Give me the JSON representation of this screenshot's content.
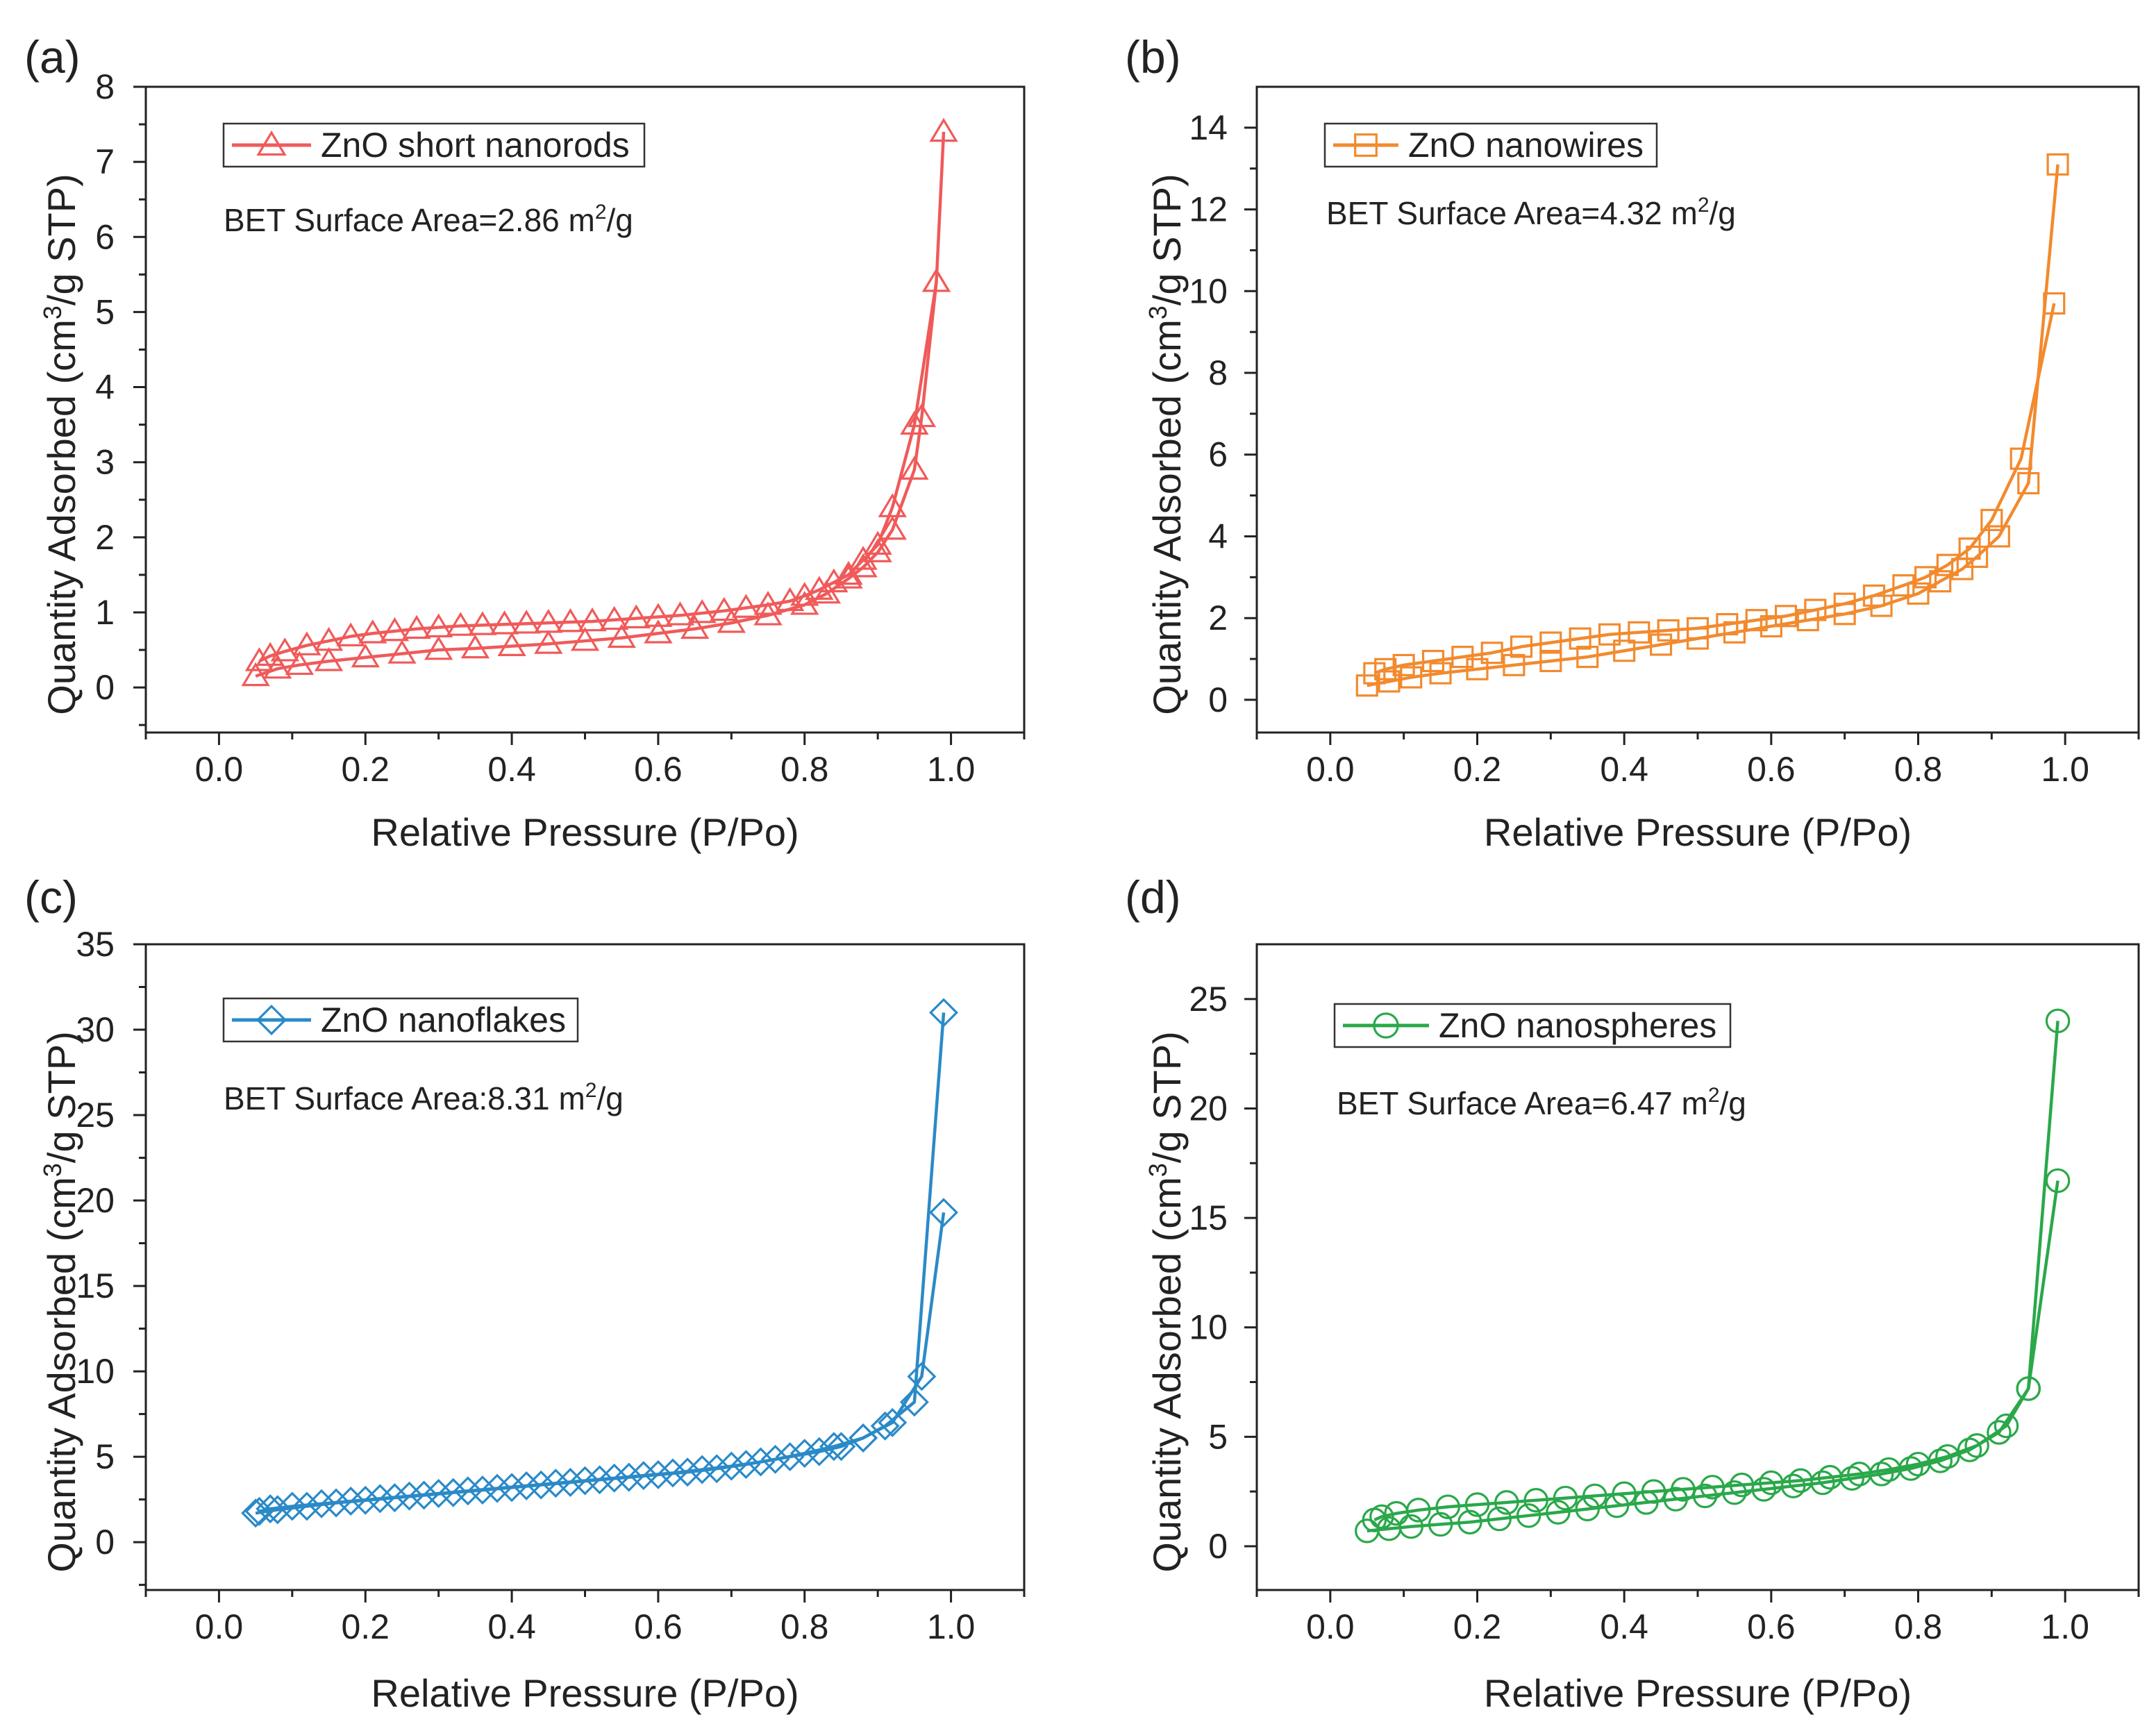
{
  "chart_data": [
    {
      "type": "line",
      "panel": "(a)",
      "series_name": "ZnO short nanorods",
      "marker": "triangle",
      "color": "#f05a5a",
      "annotation": {
        "text": "BET Surface Area=2.86 m",
        "sup": "2",
        "tail": "/g"
      },
      "xlabel": "Relative Pressure (P/Po)",
      "ylabel": "Quantity Adsorbed (cm3/g STP)",
      "xlim": [
        -0.1,
        1.1
      ],
      "ylim": [
        -0.6,
        8
      ],
      "xticks": [
        0.0,
        0.2,
        0.4,
        0.6,
        0.8,
        1.0
      ],
      "xtick_labels": [
        "0.0",
        "0.2",
        "0.4",
        "0.6",
        "0.8",
        "1.0"
      ],
      "yticks": [
        0,
        1,
        2,
        3,
        4,
        5,
        6,
        7,
        8
      ],
      "ytick_labels": [
        "0",
        "1",
        "2",
        "3",
        "4",
        "5",
        "6",
        "7",
        "8"
      ],
      "adsorption": {
        "x": [
          0.05,
          0.08,
          0.11,
          0.15,
          0.2,
          0.25,
          0.3,
          0.35,
          0.4,
          0.45,
          0.5,
          0.55,
          0.6,
          0.65,
          0.7,
          0.75,
          0.8,
          0.83,
          0.86,
          0.88,
          0.9,
          0.92,
          0.95,
          0.96,
          0.98,
          0.99
        ],
        "y": [
          0.15,
          0.25,
          0.3,
          0.35,
          0.4,
          0.45,
          0.5,
          0.52,
          0.55,
          0.58,
          0.62,
          0.66,
          0.72,
          0.78,
          0.86,
          0.96,
          1.1,
          1.25,
          1.45,
          1.6,
          1.8,
          2.1,
          2.9,
          3.6,
          5.4,
          7.4
        ]
      },
      "desorption": {
        "x": [
          0.98,
          0.95,
          0.92,
          0.9,
          0.88,
          0.86,
          0.84,
          0.82,
          0.8,
          0.78,
          0.75,
          0.72,
          0.69,
          0.66,
          0.63,
          0.6,
          0.57,
          0.54,
          0.51,
          0.48,
          0.45,
          0.42,
          0.39,
          0.36,
          0.33,
          0.3,
          0.27,
          0.24,
          0.21,
          0.18,
          0.15,
          0.12,
          0.09,
          0.07,
          0.055
        ],
        "y": [
          5.4,
          3.5,
          2.4,
          1.9,
          1.7,
          1.5,
          1.4,
          1.3,
          1.22,
          1.15,
          1.1,
          1.06,
          1.02,
          0.99,
          0.96,
          0.94,
          0.92,
          0.9,
          0.88,
          0.87,
          0.86,
          0.85,
          0.84,
          0.83,
          0.82,
          0.8,
          0.78,
          0.75,
          0.72,
          0.68,
          0.62,
          0.56,
          0.48,
          0.42,
          0.35
        ]
      }
    },
    {
      "type": "line",
      "panel": "(b)",
      "series_name": "ZnO nanowires",
      "marker": "square",
      "color": "#f28a2e",
      "annotation": {
        "text": "BET Surface Area=4.32 m",
        "sup": "2",
        "tail": "/g"
      },
      "xlabel": "Relative Pressure (P/Po)",
      "ylabel": "Quantity Adsorbed (cm3/g STP)",
      "xlim": [
        -0.1,
        1.1
      ],
      "ylim": [
        -0.8,
        15
      ],
      "xticks": [
        0.0,
        0.2,
        0.4,
        0.6,
        0.8,
        1.0
      ],
      "xtick_labels": [
        "0.0",
        "0.2",
        "0.4",
        "0.6",
        "0.8",
        "1.0"
      ],
      "yticks": [
        0,
        2,
        4,
        6,
        8,
        10,
        12,
        14
      ],
      "ytick_labels": [
        "0",
        "2",
        "4",
        "6",
        "8",
        "10",
        "12",
        "14"
      ],
      "adsorption": {
        "x": [
          0.05,
          0.08,
          0.11,
          0.15,
          0.2,
          0.25,
          0.3,
          0.35,
          0.4,
          0.45,
          0.5,
          0.55,
          0.6,
          0.65,
          0.7,
          0.75,
          0.8,
          0.83,
          0.86,
          0.88,
          0.91,
          0.95,
          0.99
        ],
        "y": [
          0.35,
          0.45,
          0.55,
          0.65,
          0.75,
          0.85,
          0.95,
          1.05,
          1.2,
          1.35,
          1.5,
          1.65,
          1.8,
          1.95,
          2.1,
          2.3,
          2.6,
          2.9,
          3.2,
          3.5,
          4.0,
          5.3,
          13.1
        ]
      },
      "desorption": {
        "x": [
          0.985,
          0.94,
          0.9,
          0.87,
          0.84,
          0.81,
          0.78,
          0.74,
          0.7,
          0.66,
          0.62,
          0.58,
          0.54,
          0.5,
          0.46,
          0.42,
          0.38,
          0.34,
          0.3,
          0.26,
          0.22,
          0.18,
          0.14,
          0.1,
          0.075,
          0.06
        ],
        "y": [
          9.7,
          5.9,
          4.4,
          3.7,
          3.3,
          3.0,
          2.8,
          2.55,
          2.35,
          2.2,
          2.05,
          1.95,
          1.85,
          1.75,
          1.7,
          1.65,
          1.6,
          1.5,
          1.4,
          1.3,
          1.15,
          1.05,
          0.95,
          0.85,
          0.75,
          0.65
        ]
      }
    },
    {
      "type": "line",
      "panel": "(c)",
      "series_name": "ZnO nanoflakes",
      "marker": "diamond",
      "color": "#2a8ac8",
      "annotation": {
        "text": "BET Surface Area:8.31 m",
        "sup": "2",
        "tail": "/g"
      },
      "xlabel": "Relative Pressure (P/Po)",
      "ylabel": "Quantity Adsorbed (cm3/g STP)",
      "xlim": [
        -0.1,
        1.1
      ],
      "ylim": [
        -2.8,
        35
      ],
      "xticks": [
        0.0,
        0.2,
        0.4,
        0.6,
        0.8,
        1.0
      ],
      "xtick_labels": [
        "0.0",
        "0.2",
        "0.4",
        "0.6",
        "0.8",
        "1.0"
      ],
      "yticks": [
        0,
        5,
        10,
        15,
        20,
        25,
        30,
        35
      ],
      "ytick_labels": [
        "0",
        "5",
        "10",
        "15",
        "20",
        "25",
        "30",
        "35"
      ],
      "adsorption": {
        "x": [
          0.05,
          0.08,
          0.12,
          0.16,
          0.2,
          0.24,
          0.28,
          0.32,
          0.36,
          0.4,
          0.44,
          0.48,
          0.52,
          0.56,
          0.6,
          0.64,
          0.68,
          0.72,
          0.76,
          0.8,
          0.84,
          0.88,
          0.91,
          0.95,
          0.99
        ],
        "y": [
          1.7,
          1.9,
          2.1,
          2.3,
          2.45,
          2.6,
          2.75,
          2.9,
          3.05,
          3.2,
          3.35,
          3.5,
          3.65,
          3.8,
          3.95,
          4.1,
          4.3,
          4.55,
          4.85,
          5.2,
          5.6,
          6.1,
          6.8,
          8.2,
          31.0
        ]
      },
      "desorption": {
        "x": [
          0.99,
          0.96,
          0.92,
          0.88,
          0.85,
          0.82,
          0.78,
          0.74,
          0.7,
          0.66,
          0.62,
          0.58,
          0.54,
          0.5,
          0.46,
          0.42,
          0.38,
          0.34,
          0.3,
          0.26,
          0.22,
          0.18,
          0.14,
          0.1,
          0.07,
          0.055
        ],
        "y": [
          19.3,
          9.7,
          7.0,
          6.1,
          5.6,
          5.3,
          5.0,
          4.7,
          4.45,
          4.25,
          4.05,
          3.9,
          3.75,
          3.6,
          3.45,
          3.3,
          3.15,
          3.0,
          2.85,
          2.7,
          2.55,
          2.4,
          2.25,
          2.1,
          1.95,
          1.8
        ]
      }
    },
    {
      "type": "line",
      "panel": "(d)",
      "series_name": "ZnO nanospheres",
      "marker": "circle",
      "color": "#2aa84a",
      "annotation": {
        "text": "BET Surface Area=6.47 m",
        "sup": "2",
        "tail": "/g"
      },
      "xlabel": "Relative Pressure (P/Po)",
      "ylabel": "Quantity Adsorbed (cm3/g STP)",
      "xlim": [
        -0.1,
        1.1
      ],
      "ylim": [
        -2,
        27.5
      ],
      "xticks": [
        0.0,
        0.2,
        0.4,
        0.6,
        0.8,
        1.0
      ],
      "xtick_labels": [
        "0.0",
        "0.2",
        "0.4",
        "0.6",
        "0.8",
        "1.0"
      ],
      "yticks": [
        0,
        5,
        10,
        15,
        20,
        25
      ],
      "ytick_labels": [
        "0",
        "5",
        "10",
        "15",
        "20",
        "25"
      ],
      "adsorption": {
        "x": [
          0.05,
          0.08,
          0.11,
          0.15,
          0.19,
          0.23,
          0.27,
          0.31,
          0.35,
          0.39,
          0.43,
          0.47,
          0.51,
          0.55,
          0.59,
          0.63,
          0.67,
          0.71,
          0.75,
          0.79,
          0.83,
          0.87,
          0.91,
          0.95,
          0.99
        ],
        "y": [
          0.7,
          0.8,
          0.9,
          1.0,
          1.1,
          1.25,
          1.4,
          1.55,
          1.7,
          1.85,
          2.0,
          2.15,
          2.3,
          2.45,
          2.6,
          2.75,
          2.9,
          3.1,
          3.3,
          3.55,
          3.9,
          4.4,
          5.2,
          7.2,
          24.0
        ]
      },
      "desorption": {
        "x": [
          0.99,
          0.95,
          0.92,
          0.88,
          0.84,
          0.8,
          0.76,
          0.72,
          0.68,
          0.64,
          0.6,
          0.56,
          0.52,
          0.48,
          0.44,
          0.4,
          0.36,
          0.32,
          0.28,
          0.24,
          0.2,
          0.16,
          0.12,
          0.09,
          0.07,
          0.06
        ],
        "y": [
          16.7,
          7.2,
          5.5,
          4.6,
          4.1,
          3.75,
          3.5,
          3.3,
          3.15,
          3.0,
          2.9,
          2.8,
          2.7,
          2.6,
          2.5,
          2.4,
          2.3,
          2.2,
          2.1,
          2.0,
          1.9,
          1.8,
          1.65,
          1.5,
          1.35,
          1.2
        ]
      }
    }
  ]
}
